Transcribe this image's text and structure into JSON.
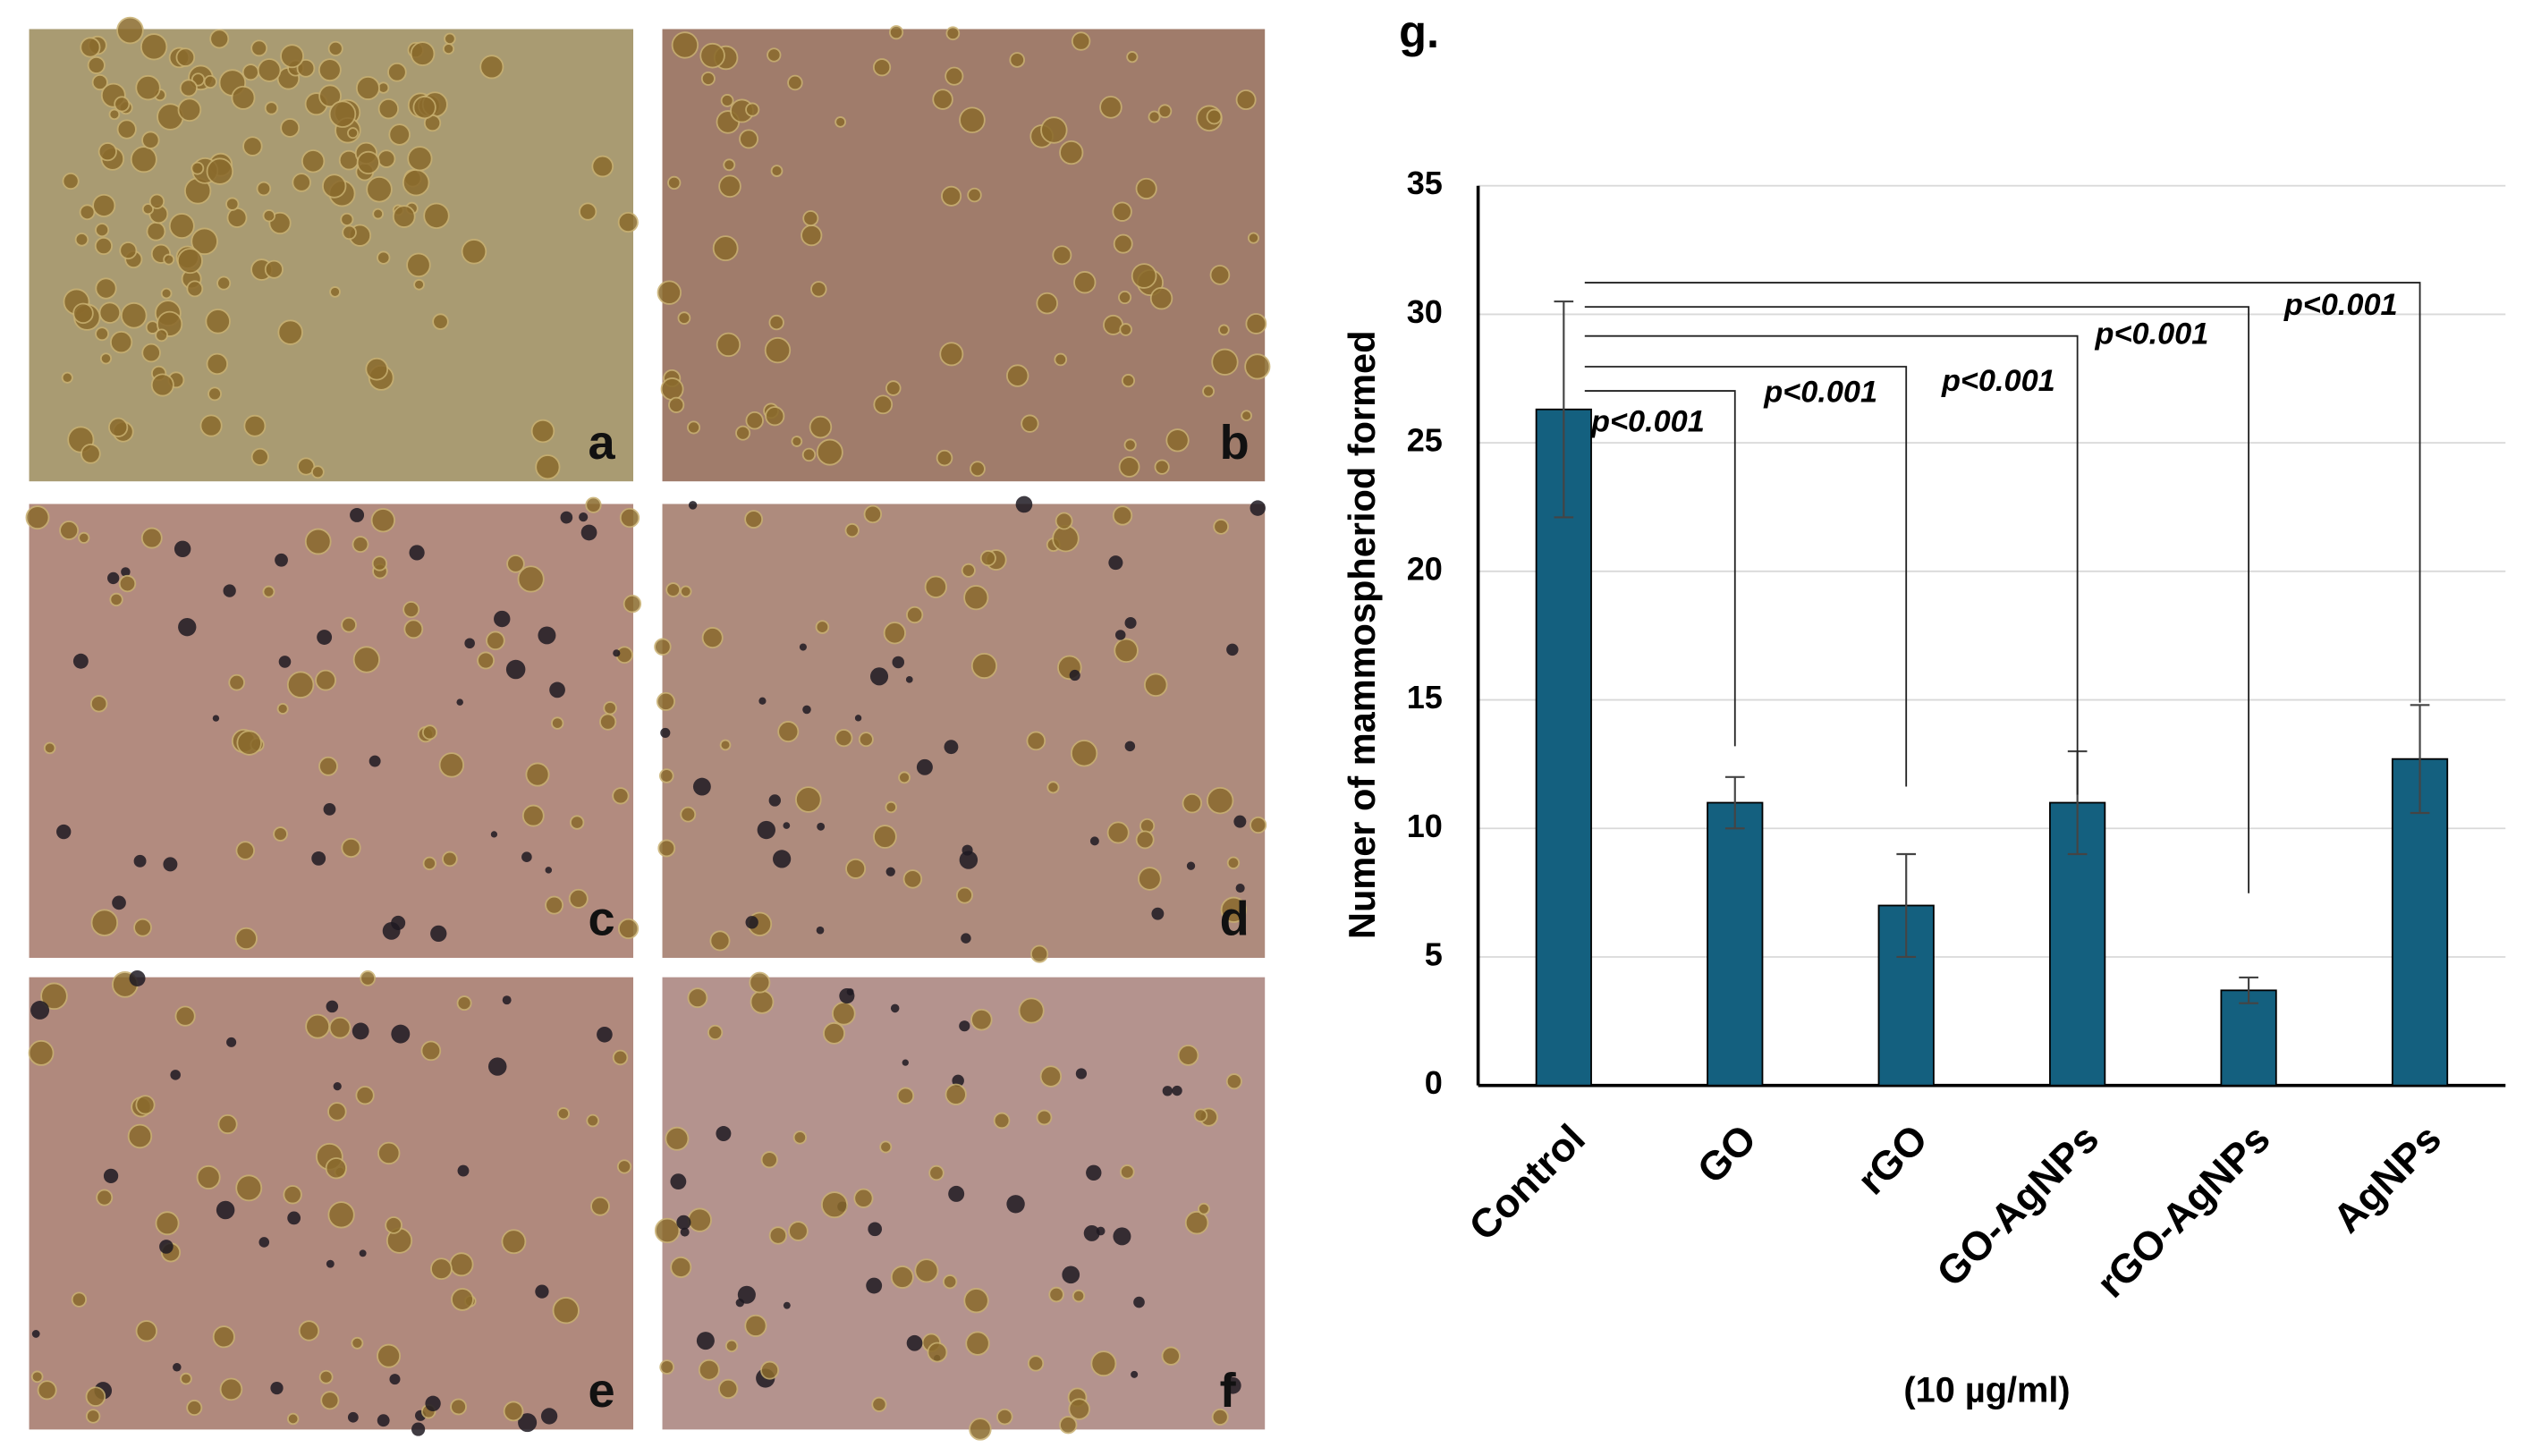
{
  "panels": [
    {
      "label": "a"
    },
    {
      "label": "b"
    },
    {
      "label": "c"
    },
    {
      "label": "d"
    },
    {
      "label": "e"
    },
    {
      "label": "f"
    }
  ],
  "chart_data": {
    "type": "bar",
    "panel_label": "g.",
    "y_label": "Numer of mammospheriod formed",
    "x_label": "(10 µg/ml)",
    "categories": [
      "Control",
      "GO",
      "rGO",
      "GO-AgNPs",
      "rGO-AgNPs",
      "AgNPs"
    ],
    "values": [
      26.3,
      11,
      7,
      11,
      3.7,
      12.7
    ],
    "errors": [
      4.2,
      1.0,
      2.0,
      2.0,
      0.5,
      2.1
    ],
    "color": "#14607f",
    "ylim": [
      0,
      35
    ],
    "yticks": [
      0,
      5,
      10,
      15,
      20,
      25,
      30,
      35
    ],
    "grid": true,
    "annotations": [
      "p<0.001",
      "p<0.001",
      "p<0.001",
      "p<0.001",
      "p<0.001"
    ]
  }
}
